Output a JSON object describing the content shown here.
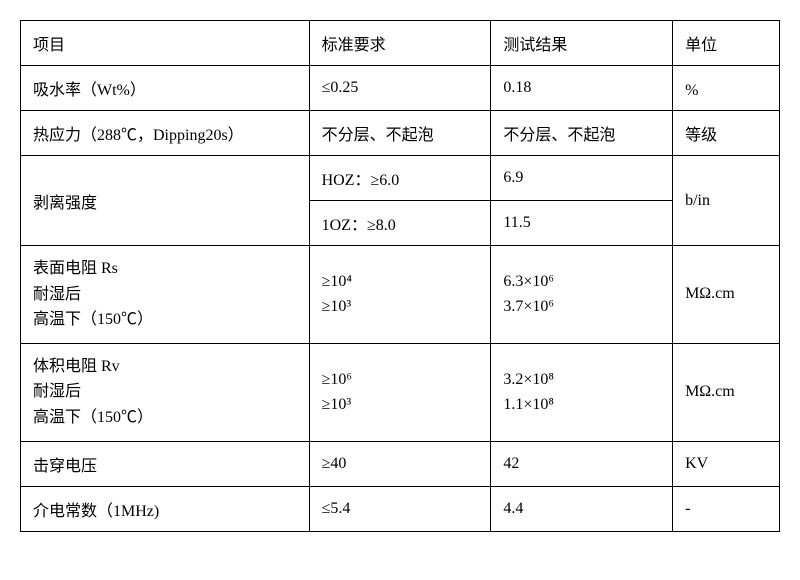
{
  "table": {
    "headers": {
      "col1": "项目",
      "col2": "标准要求",
      "col3": "测试结果",
      "col4": "单位"
    },
    "rows": [
      {
        "item": "吸水率（Wt%）",
        "standard": "≤0.25",
        "result": "0.18",
        "unit": "%"
      },
      {
        "item": "热应力（288℃，Dipping20s）",
        "standard": "不分层、不起泡",
        "result": "不分层、不起泡",
        "unit": "等级"
      },
      {
        "item": "剥离强度",
        "sub1_standard": "HOZ：≥6.0",
        "sub1_result": "6.9",
        "sub2_standard": "1OZ：≥8.0",
        "sub2_result": "11.5",
        "unit": "b/in"
      },
      {
        "item_line1": "表面电阻 Rs",
        "item_line2": "耐湿后",
        "item_line3": "高温下（150℃）",
        "standard_line1": "≥10⁴",
        "standard_line2": "≥10³",
        "result_line1": "6.3×10⁶",
        "result_line2": "3.7×10⁶",
        "unit": "MΩ.cm"
      },
      {
        "item_line1": "体积电阻 Rv",
        "item_line2": "耐湿后",
        "item_line3": "高温下（150℃）",
        "standard_line1": "≥10⁶",
        "standard_line2": "≥10³",
        "result_line1": "3.2×10⁸",
        "result_line2": "1.1×10⁸",
        "unit": "MΩ.cm"
      },
      {
        "item": "击穿电压",
        "standard": "≥40",
        "result": "42",
        "unit": "KV"
      },
      {
        "item": "介电常数（1MHz)",
        "standard": "≤5.4",
        "result": "4.4",
        "unit": "-"
      }
    ]
  }
}
